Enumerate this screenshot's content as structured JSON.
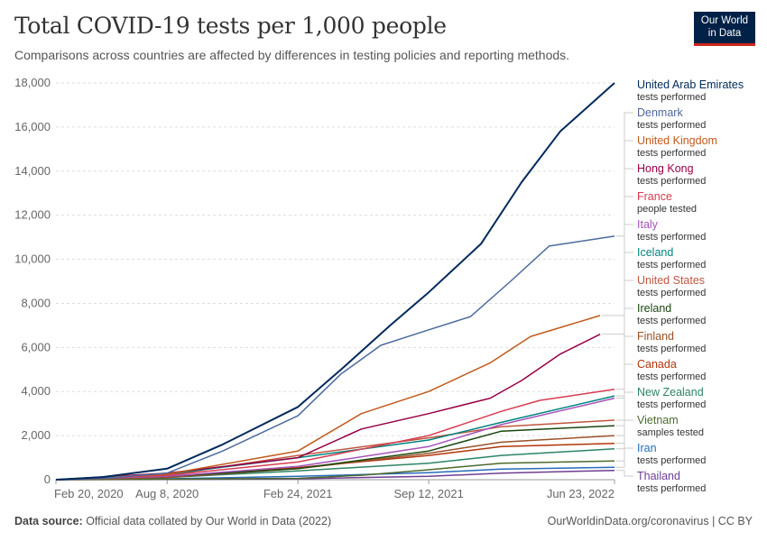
{
  "header": {
    "title": "Total COVID-19 tests per 1,000 people",
    "subtitle": "Comparisons across countries are affected by differences in testing policies and reporting methods.",
    "logo_line1": "Our World",
    "logo_line2": "in Data"
  },
  "footer": {
    "source_label": "Data source:",
    "source_text": " Official data collated by Our World in Data (2022)",
    "link_text": "OurWorldinData.org/coronavirus | CC BY"
  },
  "chart_data": {
    "type": "line",
    "title": "Total COVID-19 tests per 1,000 people",
    "ylim": [
      0,
      18000
    ],
    "y_ticks": [
      0,
      2000,
      4000,
      6000,
      8000,
      10000,
      12000,
      14000,
      16000,
      18000
    ],
    "y_tick_labels": [
      "0",
      "2,000",
      "4,000",
      "6,000",
      "8,000",
      "10,000",
      "12,000",
      "14,000",
      "16,000",
      "18,000"
    ],
    "x_ticks": [
      "2020-02-20",
      "2020-08-08",
      "2021-02-24",
      "2021-09-12",
      "2022-06-23"
    ],
    "x_tick_labels": [
      "Feb 20, 2020",
      "Aug 8, 2020",
      "Feb 24, 2021",
      "Sep 12, 2021",
      "Jun 23, 2022"
    ],
    "xlim": [
      "2020-02-20",
      "2022-06-23"
    ],
    "grid": "horizontal dashed",
    "legend": "right, end-of-line labels",
    "series": [
      {
        "name": "United Arab Emirates",
        "label2": "tests performed",
        "color": "#00295b",
        "points": [
          [
            "2020-02-20",
            0
          ],
          [
            "2020-05-01",
            120
          ],
          [
            "2020-08-08",
            500
          ],
          [
            "2020-11-01",
            1600
          ],
          [
            "2021-02-24",
            3300
          ],
          [
            "2021-05-01",
            5000
          ],
          [
            "2021-07-15",
            7000
          ],
          [
            "2021-09-12",
            8500
          ],
          [
            "2021-12-01",
            10700
          ],
          [
            "2022-02-01",
            13500
          ],
          [
            "2022-04-01",
            15800
          ],
          [
            "2022-06-23",
            18000
          ]
        ]
      },
      {
        "name": "Denmark",
        "label2": "tests performed",
        "color": "#4c6a9c",
        "points": [
          [
            "2020-02-20",
            0
          ],
          [
            "2020-05-01",
            60
          ],
          [
            "2020-08-08",
            300
          ],
          [
            "2020-11-01",
            1300
          ],
          [
            "2021-02-24",
            2900
          ],
          [
            "2021-05-01",
            4800
          ],
          [
            "2021-07-01",
            6100
          ],
          [
            "2021-09-12",
            6800
          ],
          [
            "2021-11-15",
            7400
          ],
          [
            "2022-01-15",
            9000
          ],
          [
            "2022-03-15",
            10600
          ],
          [
            "2022-06-23",
            11050
          ]
        ]
      },
      {
        "name": "United Kingdom",
        "label2": "tests performed",
        "color": "#c15a1a",
        "points": [
          [
            "2020-02-20",
            0
          ],
          [
            "2020-08-08",
            250
          ],
          [
            "2021-02-24",
            1300
          ],
          [
            "2021-06-01",
            3000
          ],
          [
            "2021-09-12",
            4000
          ],
          [
            "2021-12-15",
            5300
          ],
          [
            "2022-02-15",
            6500
          ],
          [
            "2022-06-01",
            7450
          ]
        ]
      },
      {
        "name": "Hong Kong",
        "label2": "tests performed",
        "color": "#970046",
        "points": [
          [
            "2020-02-20",
            0
          ],
          [
            "2020-08-08",
            300
          ],
          [
            "2021-02-24",
            1000
          ],
          [
            "2021-06-01",
            2300
          ],
          [
            "2021-09-12",
            3000
          ],
          [
            "2021-12-15",
            3700
          ],
          [
            "2022-02-01",
            4500
          ],
          [
            "2022-04-01",
            5700
          ],
          [
            "2022-06-01",
            6600
          ]
        ]
      },
      {
        "name": "France",
        "label2": "people tested",
        "color": "#d73c50",
        "points": [
          [
            "2020-02-20",
            0
          ],
          [
            "2020-08-08",
            200
          ],
          [
            "2021-02-24",
            800
          ],
          [
            "2021-09-12",
            2000
          ],
          [
            "2022-01-01",
            3100
          ],
          [
            "2022-03-01",
            3600
          ],
          [
            "2022-06-23",
            4100
          ]
        ]
      },
      {
        "name": "Italy",
        "label2": "tests performed",
        "color": "#a652ba",
        "points": [
          [
            "2020-02-20",
            0
          ],
          [
            "2020-08-08",
            150
          ],
          [
            "2021-02-24",
            600
          ],
          [
            "2021-09-12",
            1500
          ],
          [
            "2022-01-01",
            2500
          ],
          [
            "2022-06-23",
            3700
          ]
        ]
      },
      {
        "name": "Iceland",
        "label2": "tests performed",
        "color": "#00847e",
        "points": [
          [
            "2020-02-20",
            0
          ],
          [
            "2020-08-08",
            250
          ],
          [
            "2021-02-24",
            1000
          ],
          [
            "2021-09-12",
            1800
          ],
          [
            "2022-01-01",
            2600
          ],
          [
            "2022-06-23",
            3800
          ]
        ]
      },
      {
        "name": "United States",
        "label2": "tests performed",
        "color": "#c0563e",
        "points": [
          [
            "2020-02-20",
            0
          ],
          [
            "2020-08-08",
            200
          ],
          [
            "2021-02-24",
            1100
          ],
          [
            "2021-09-12",
            1900
          ],
          [
            "2022-01-01",
            2400
          ],
          [
            "2022-06-23",
            2700
          ]
        ]
      },
      {
        "name": "Ireland",
        "label2": "tests performed",
        "color": "#18470f",
        "points": [
          [
            "2020-02-20",
            0
          ],
          [
            "2020-08-08",
            150
          ],
          [
            "2021-02-24",
            500
          ],
          [
            "2021-09-12",
            1300
          ],
          [
            "2022-01-01",
            2200
          ],
          [
            "2022-06-23",
            2450
          ]
        ]
      },
      {
        "name": "Finland",
        "label2": "tests performed",
        "color": "#9a5129",
        "points": [
          [
            "2020-02-20",
            0
          ],
          [
            "2020-08-08",
            100
          ],
          [
            "2021-02-24",
            500
          ],
          [
            "2021-09-12",
            1200
          ],
          [
            "2022-01-01",
            1700
          ],
          [
            "2022-06-23",
            2000
          ]
        ]
      },
      {
        "name": "Canada",
        "label2": "tests performed",
        "color": "#b13507",
        "points": [
          [
            "2020-02-20",
            0
          ],
          [
            "2020-08-08",
            120
          ],
          [
            "2021-02-24",
            550
          ],
          [
            "2021-09-12",
            1100
          ],
          [
            "2022-01-01",
            1500
          ],
          [
            "2022-06-23",
            1650
          ]
        ]
      },
      {
        "name": "New Zealand",
        "label2": "tests performed",
        "color": "#2c8465",
        "points": [
          [
            "2020-02-20",
            0
          ],
          [
            "2020-08-08",
            100
          ],
          [
            "2021-02-24",
            400
          ],
          [
            "2021-09-12",
            750
          ],
          [
            "2022-01-01",
            1100
          ],
          [
            "2022-06-23",
            1400
          ]
        ]
      },
      {
        "name": "Vietnam",
        "label2": "samples tested",
        "color": "#4c6a2d",
        "points": [
          [
            "2020-02-20",
            0
          ],
          [
            "2020-08-08",
            20
          ],
          [
            "2021-02-24",
            60
          ],
          [
            "2021-06-01",
            200
          ],
          [
            "2021-09-12",
            450
          ],
          [
            "2022-01-01",
            750
          ],
          [
            "2022-06-23",
            850
          ]
        ]
      },
      {
        "name": "Iran",
        "label2": "tests performed",
        "color": "#286bbb",
        "points": [
          [
            "2020-02-20",
            0
          ],
          [
            "2020-08-08",
            40
          ],
          [
            "2021-02-24",
            150
          ],
          [
            "2021-09-12",
            320
          ],
          [
            "2022-01-01",
            480
          ],
          [
            "2022-06-23",
            560
          ]
        ]
      },
      {
        "name": "Thailand",
        "label2": "tests performed",
        "color": "#6d3e91",
        "points": [
          [
            "2020-02-20",
            0
          ],
          [
            "2020-08-08",
            10
          ],
          [
            "2021-02-24",
            40
          ],
          [
            "2021-09-12",
            150
          ],
          [
            "2022-01-01",
            300
          ],
          [
            "2022-06-23",
            420
          ]
        ]
      }
    ]
  }
}
